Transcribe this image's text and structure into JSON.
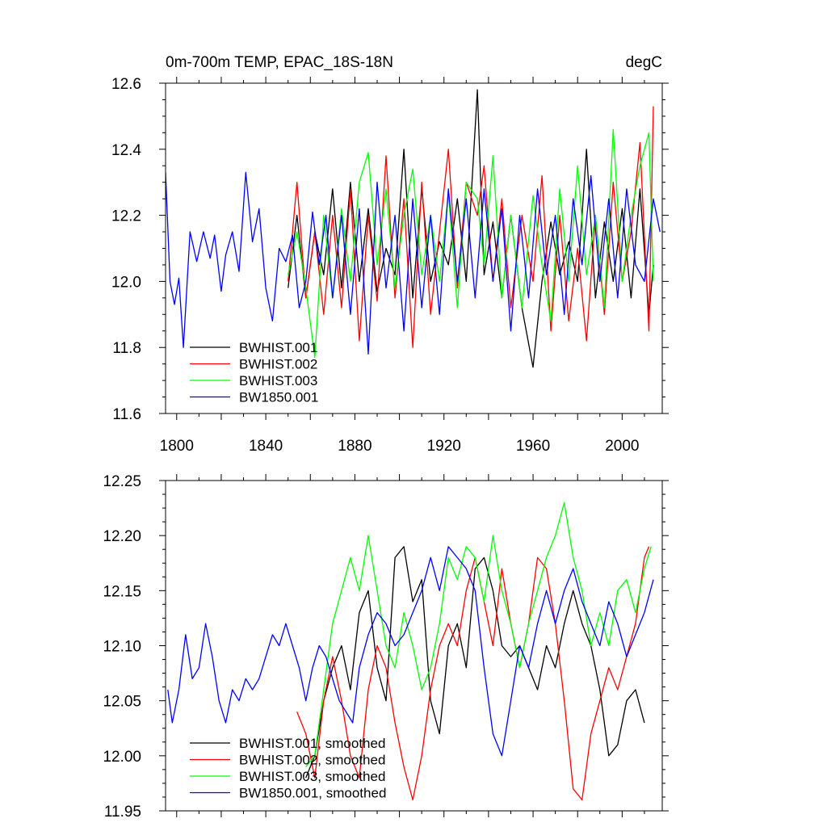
{
  "colors": {
    "BWHIST.001": "#000000",
    "BWHIST.002": "#ff0000",
    "BWHIST.003": "#00ff00",
    "BW1850.001": "#0000ff"
  },
  "chart_data": [
    {
      "type": "line",
      "title": "0m-700m TEMP, EPAC_18S-18N",
      "units": "degC",
      "xlim": [
        1795,
        2018
      ],
      "ylim": [
        11.6,
        12.6
      ],
      "x_ticks": [
        1800,
        1840,
        1880,
        1920,
        1960,
        2000
      ],
      "x_tick_labels": [
        "1800",
        "1840",
        "1880",
        "1920",
        "1960",
        "2000"
      ],
      "y_ticks": [
        11.6,
        11.8,
        12.0,
        12.2,
        12.4,
        12.6
      ],
      "y_tick_labels": [
        "11.6",
        "11.8",
        "12.0",
        "12.2",
        "12.4",
        "12.6"
      ],
      "legend_position": "bottom-left",
      "series": [
        {
          "name": "BWHIST.001",
          "color_key": "BWHIST.001",
          "x": [
            1850,
            1854,
            1858,
            1862,
            1866,
            1870,
            1874,
            1878,
            1882,
            1886,
            1890,
            1894,
            1898,
            1902,
            1906,
            1910,
            1914,
            1918,
            1922,
            1926,
            1930,
            1935,
            1938,
            1942,
            1946,
            1950,
            1955,
            1960,
            1964,
            1968,
            1972,
            1976,
            1980,
            1984,
            1988,
            1992,
            1996,
            2000,
            2004,
            2008,
            2012,
            2014
          ],
          "y": [
            11.98,
            12.2,
            11.95,
            12.15,
            12.02,
            12.28,
            11.98,
            12.3,
            12.0,
            12.22,
            11.97,
            12.1,
            12.02,
            12.4,
            11.95,
            12.28,
            12.0,
            12.12,
            12.05,
            12.25,
            12.0,
            12.58,
            12.02,
            12.18,
            11.95,
            12.2,
            11.92,
            11.74,
            12.0,
            12.18,
            12.02,
            12.12,
            12.0,
            12.4,
            11.95,
            12.18,
            12.0,
            12.22,
            11.95,
            12.28,
            11.9,
            12.05
          ]
        },
        {
          "name": "BWHIST.002",
          "color_key": "BWHIST.002",
          "x": [
            1850,
            1854,
            1858,
            1862,
            1866,
            1870,
            1874,
            1878,
            1882,
            1886,
            1890,
            1894,
            1898,
            1902,
            1906,
            1910,
            1914,
            1918,
            1922,
            1926,
            1930,
            1935,
            1938,
            1942,
            1946,
            1950,
            1955,
            1960,
            1964,
            1968,
            1972,
            1976,
            1980,
            1984,
            1988,
            1992,
            1996,
            2000,
            2004,
            2008,
            2012,
            2014
          ],
          "y": [
            12.0,
            12.3,
            11.95,
            12.15,
            11.9,
            12.2,
            11.92,
            12.28,
            11.82,
            12.2,
            11.94,
            12.38,
            11.95,
            12.25,
            11.8,
            12.3,
            11.9,
            12.15,
            12.4,
            11.98,
            12.3,
            12.2,
            12.35,
            12.0,
            12.25,
            11.92,
            12.2,
            12.0,
            12.32,
            11.85,
            12.2,
            11.88,
            12.1,
            11.82,
            12.2,
            11.9,
            12.3,
            12.0,
            12.15,
            12.42,
            11.85,
            12.53
          ]
        },
        {
          "name": "BWHIST.003",
          "color_key": "BWHIST.003",
          "x": [
            1850,
            1854,
            1858,
            1862,
            1866,
            1870,
            1874,
            1878,
            1882,
            1886,
            1890,
            1894,
            1898,
            1902,
            1906,
            1910,
            1914,
            1918,
            1922,
            1926,
            1930,
            1935,
            1938,
            1942,
            1946,
            1950,
            1955,
            1960,
            1964,
            1968,
            1972,
            1976,
            1980,
            1984,
            1988,
            1992,
            1996,
            2000,
            2004,
            2008,
            2012,
            2014
          ],
          "y": [
            12.02,
            12.15,
            11.98,
            11.77,
            12.2,
            11.95,
            12.22,
            12.0,
            12.3,
            12.39,
            12.05,
            12.28,
            11.98,
            12.2,
            12.34,
            12.02,
            12.2,
            12.0,
            12.27,
            11.92,
            12.3,
            12.25,
            12.05,
            12.38,
            11.95,
            12.2,
            11.92,
            12.26,
            12.05,
            11.88,
            12.28,
            12.0,
            12.35,
            12.02,
            12.2,
            11.92,
            12.46,
            12.0,
            12.2,
            12.35,
            12.45,
            12.0
          ]
        },
        {
          "name": "BW1850.001",
          "color_key": "BW1850.001",
          "x": [
            1795,
            1797,
            1799,
            1801,
            1803,
            1806,
            1809,
            1812,
            1815,
            1817,
            1820,
            1822,
            1825,
            1828,
            1831,
            1834,
            1837,
            1840,
            1843,
            1846,
            1849,
            1852,
            1855,
            1858,
            1861,
            1864,
            1867,
            1870,
            1874,
            1878,
            1882,
            1886,
            1890,
            1894,
            1898,
            1902,
            1906,
            1910,
            1914,
            1918,
            1922,
            1926,
            1930,
            1934,
            1938,
            1942,
            1946,
            1950,
            1954,
            1958,
            1962,
            1966,
            1970,
            1974,
            1978,
            1982,
            1986,
            1990,
            1994,
            1998,
            2002,
            2006,
            2010,
            2014,
            2017
          ],
          "y": [
            12.33,
            12.0,
            11.93,
            12.01,
            11.8,
            12.15,
            12.06,
            12.15,
            12.07,
            12.14,
            11.97,
            12.08,
            12.15,
            12.03,
            12.33,
            12.12,
            12.22,
            11.98,
            11.88,
            12.1,
            12.06,
            12.14,
            11.92,
            12.0,
            12.21,
            12.05,
            12.2,
            11.95,
            12.2,
            11.9,
            12.22,
            11.78,
            12.3,
            11.98,
            12.2,
            11.85,
            12.25,
            11.92,
            12.2,
            11.9,
            12.28,
            12.0,
            12.25,
            11.95,
            12.28,
            12.0,
            12.22,
            11.85,
            12.2,
            11.95,
            12.28,
            12.02,
            12.2,
            11.9,
            12.25,
            12.05,
            12.32,
            12.0,
            12.25,
            11.95,
            12.28,
            12.05,
            12.0,
            12.25,
            12.15
          ]
        }
      ]
    },
    {
      "type": "line",
      "xlim": [
        1795,
        2018
      ],
      "ylim": [
        11.95,
        12.25
      ],
      "y_ticks": [
        11.95,
        12.0,
        12.05,
        12.1,
        12.15,
        12.2,
        12.25
      ],
      "y_tick_labels": [
        "11.95",
        "12.00",
        "12.05",
        "12.10",
        "12.15",
        "12.20",
        "12.25"
      ],
      "x_ticks": [
        1800,
        1840,
        1880,
        1920,
        1960,
        2000
      ],
      "legend_position": "bottom-left",
      "series": [
        {
          "name": "BWHIST.001, smoothed",
          "color_key": "BWHIST.001",
          "x": [
            1858,
            1862,
            1866,
            1870,
            1874,
            1878,
            1882,
            1886,
            1890,
            1894,
            1898,
            1902,
            1906,
            1910,
            1914,
            1918,
            1922,
            1926,
            1930,
            1934,
            1938,
            1942,
            1946,
            1950,
            1954,
            1958,
            1962,
            1966,
            1970,
            1974,
            1978,
            1982,
            1986,
            1990,
            1994,
            1998,
            2002,
            2006,
            2010
          ],
          "y": [
            11.98,
            12.0,
            12.05,
            12.08,
            12.1,
            12.06,
            12.13,
            12.15,
            12.08,
            12.05,
            12.18,
            12.19,
            12.14,
            12.16,
            12.05,
            12.02,
            12.1,
            12.12,
            12.08,
            12.17,
            12.18,
            12.15,
            12.1,
            12.09,
            12.1,
            12.08,
            12.06,
            12.1,
            12.08,
            12.12,
            12.15,
            12.12,
            12.1,
            12.06,
            12.0,
            12.01,
            12.05,
            12.06,
            12.03
          ]
        },
        {
          "name": "BWHIST.002, smoothed",
          "color_key": "BWHIST.002",
          "x": [
            1854,
            1858,
            1862,
            1866,
            1870,
            1874,
            1878,
            1882,
            1886,
            1890,
            1894,
            1898,
            1902,
            1906,
            1910,
            1914,
            1918,
            1922,
            1926,
            1930,
            1934,
            1938,
            1942,
            1946,
            1950,
            1954,
            1958,
            1962,
            1966,
            1970,
            1974,
            1978,
            1982,
            1986,
            1990,
            1994,
            1998,
            2002,
            2006,
            2010,
            2012
          ],
          "y": [
            12.04,
            12.02,
            11.98,
            12.05,
            12.09,
            12.05,
            12.0,
            11.98,
            12.06,
            12.1,
            12.08,
            12.03,
            11.99,
            11.96,
            12.0,
            12.06,
            12.1,
            12.12,
            12.1,
            12.15,
            12.18,
            12.14,
            12.1,
            12.17,
            12.12,
            12.08,
            12.12,
            12.18,
            12.17,
            12.12,
            12.05,
            11.97,
            11.96,
            12.02,
            12.05,
            12.08,
            12.06,
            12.09,
            12.12,
            12.18,
            12.19
          ]
        },
        {
          "name": "BWHIST.003, smoothed",
          "color_key": "BWHIST.003",
          "x": [
            1858,
            1862,
            1866,
            1870,
            1874,
            1878,
            1882,
            1886,
            1890,
            1894,
            1898,
            1902,
            1906,
            1910,
            1914,
            1918,
            1922,
            1926,
            1930,
            1934,
            1938,
            1942,
            1946,
            1950,
            1954,
            1958,
            1962,
            1966,
            1970,
            1974,
            1978,
            1982,
            1986,
            1990,
            1994,
            1998,
            2002,
            2006,
            2010,
            2013
          ],
          "y": [
            11.99,
            12.0,
            12.06,
            12.12,
            12.15,
            12.18,
            12.15,
            12.2,
            12.15,
            12.1,
            12.08,
            12.13,
            12.1,
            12.06,
            12.08,
            12.12,
            12.18,
            12.16,
            12.19,
            12.18,
            12.14,
            12.2,
            12.15,
            12.12,
            12.08,
            12.12,
            12.15,
            12.18,
            12.2,
            12.23,
            12.18,
            12.15,
            12.1,
            12.13,
            12.1,
            12.15,
            12.16,
            12.13,
            12.17,
            12.19
          ]
        },
        {
          "name": "BW1850.001, smoothed",
          "color_key": "BW1850.001",
          "x": [
            1796,
            1798,
            1801,
            1804,
            1807,
            1810,
            1813,
            1816,
            1819,
            1822,
            1825,
            1828,
            1831,
            1834,
            1837,
            1840,
            1843,
            1846,
            1849,
            1852,
            1855,
            1858,
            1861,
            1864,
            1867,
            1870,
            1873,
            1876,
            1879,
            1882,
            1886,
            1890,
            1894,
            1898,
            1902,
            1906,
            1910,
            1914,
            1918,
            1922,
            1926,
            1930,
            1934,
            1938,
            1942,
            1946,
            1950,
            1954,
            1958,
            1962,
            1966,
            1970,
            1974,
            1978,
            1982,
            1986,
            1990,
            1994,
            1998,
            2002,
            2006,
            2010,
            2014
          ],
          "y": [
            12.06,
            12.03,
            12.06,
            12.11,
            12.07,
            12.08,
            12.12,
            12.09,
            12.05,
            12.03,
            12.06,
            12.05,
            12.07,
            12.06,
            12.07,
            12.09,
            12.11,
            12.1,
            12.12,
            12.1,
            12.08,
            12.05,
            12.08,
            12.1,
            12.09,
            12.07,
            12.05,
            12.04,
            12.03,
            12.08,
            12.11,
            12.13,
            12.12,
            12.1,
            12.11,
            12.13,
            12.15,
            12.18,
            12.15,
            12.19,
            12.18,
            12.17,
            12.15,
            12.08,
            12.02,
            12.0,
            12.05,
            12.1,
            12.08,
            12.12,
            12.15,
            12.12,
            12.15,
            12.17,
            12.14,
            12.12,
            12.1,
            12.14,
            12.12,
            12.09,
            12.11,
            12.13,
            12.16
          ]
        }
      ]
    }
  ]
}
